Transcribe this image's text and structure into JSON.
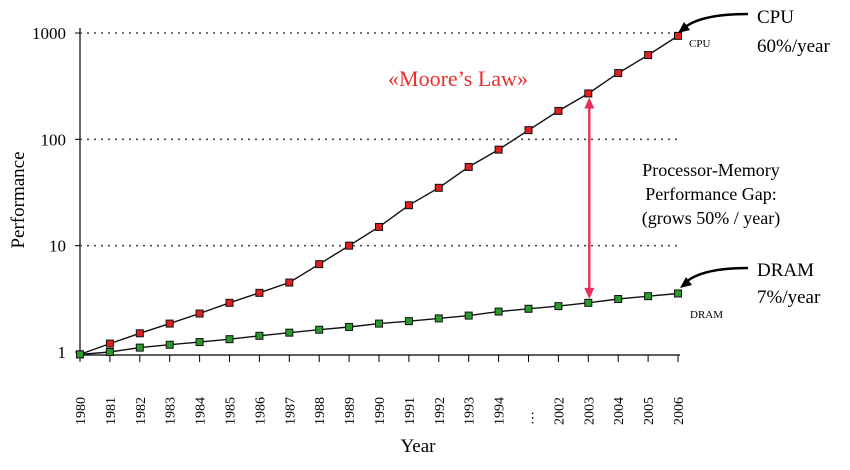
{
  "chart_data": {
    "type": "line",
    "title": "",
    "xlabel": "Year",
    "ylabel": "Performance",
    "y_scale": "log",
    "ylim": [
      1,
      1000
    ],
    "y_ticks": [
      "1",
      "10",
      "100",
      "1000"
    ],
    "grid": "dotted horizontal at 10, 100, 1000",
    "categories": [
      "1980",
      "1981",
      "1982",
      "1983",
      "1984",
      "1985",
      "1986",
      "1987",
      "1988",
      "1989",
      "1990",
      "1991",
      "1992",
      "1993",
      "1994",
      "…",
      "2002",
      "2003",
      "2004",
      "2005",
      "2006"
    ],
    "series": [
      {
        "name": "CPU",
        "color": "#e02020",
        "values": [
          0.95,
          1.2,
          1.5,
          1.85,
          2.3,
          2.9,
          3.6,
          4.5,
          6.7,
          10,
          15,
          24,
          35,
          55,
          80,
          122,
          185,
          270,
          420,
          620,
          940
        ]
      },
      {
        "name": "DRAM",
        "color": "#2a9a2a",
        "values": [
          0.95,
          1.0,
          1.1,
          1.17,
          1.24,
          1.32,
          1.42,
          1.52,
          1.62,
          1.72,
          1.85,
          1.95,
          2.07,
          2.2,
          2.4,
          2.55,
          2.7,
          2.9,
          3.15,
          3.35,
          3.55
        ]
      }
    ],
    "annotations": {
      "moore": "«Moore’s Law»",
      "cpu_callout": [
        "CPU",
        "60%/year"
      ],
      "cpu_small": "CPU",
      "dram_callout": [
        "DRAM",
        "7%/year"
      ],
      "dram_small": "DRAM",
      "gap": [
        "Processor-Memory",
        "Performance Gap:",
        "(grows 50% / year)"
      ]
    },
    "colors": {
      "gap_arrow": "#e8305a",
      "moore_text": "#e83030"
    }
  }
}
